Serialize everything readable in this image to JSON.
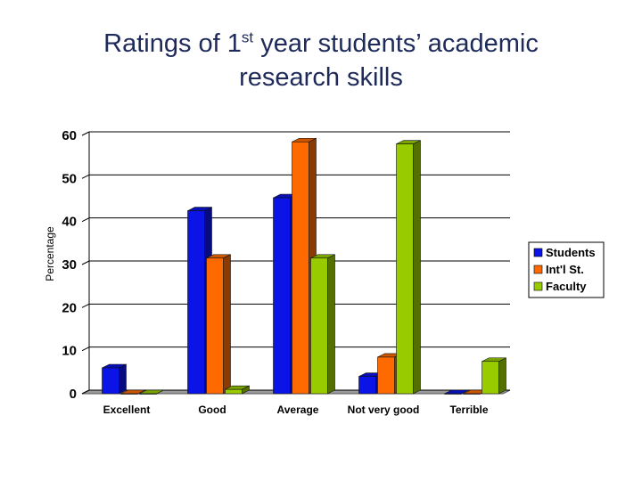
{
  "title": {
    "line1_pre": "Ratings of 1",
    "line1_sup": "st",
    "line1_post": " year students’ academic",
    "line2": "research skills"
  },
  "chart_data": {
    "type": "bar",
    "style": "3d-clustered",
    "categories": [
      "Excellent",
      "Good",
      "Average",
      "Not very good",
      "Terrible"
    ],
    "series": [
      {
        "name": "Students",
        "color": "#0a14e6",
        "values": [
          6,
          42.5,
          45.5,
          4,
          0
        ]
      },
      {
        "name": "Int'l St.",
        "color": "#ff6a00",
        "values": [
          0,
          31.5,
          58.5,
          8.5,
          0
        ]
      },
      {
        "name": "Faculty",
        "color": "#99cc00",
        "values": [
          0,
          1,
          31.5,
          58,
          7.5
        ]
      }
    ],
    "ylabel": "Percentage",
    "xlabel": "",
    "ylim": [
      0,
      60
    ],
    "yticks": [
      0,
      10,
      20,
      30,
      40,
      50,
      60
    ],
    "grid": true,
    "legend_position": "right"
  }
}
